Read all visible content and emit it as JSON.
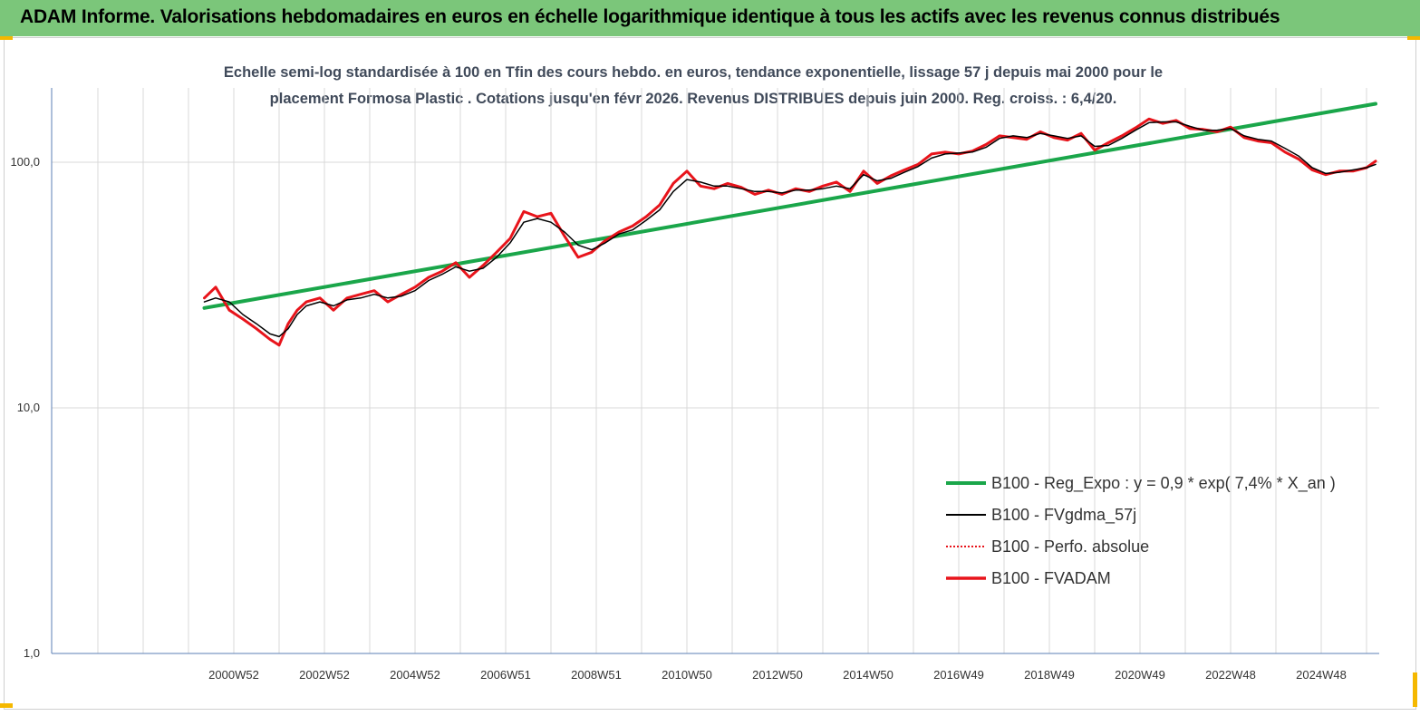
{
  "header": {
    "title": "ADAM Informe. Valorisations hebdomadaires en euros en échelle logarithmique identique à tous les actifs avec les revenus connus distribués"
  },
  "colors": {
    "header_bg": "#7bc67a",
    "accent_corner": "#f5b800",
    "series_regression": "#1aa64a",
    "series_smoothed": "#000000",
    "series_fvadam": "#e8141b"
  },
  "chart_data": {
    "type": "line",
    "title_line1": "Echelle semi-log standardisée à 100 en Tfin des cours hebdo. en euros, tendance exponentielle, lissage 57 j depuis mai 2000 pour le",
    "title_line2": "placement Formosa Plastic . Cotations jusqu'en févr 2026.  Revenus DISTRIBUES depuis juin 2000. Reg. croiss. : 6,4/20.",
    "y_scale": "log",
    "ylim": [
      1,
      200
    ],
    "y_ticks": [
      1,
      10,
      100
    ],
    "y_tick_labels": [
      "1,0",
      "10,0",
      "100,0"
    ],
    "xlim": [
      1998.0,
      2027.3
    ],
    "x_ticks": [
      2001.0,
      2003.0,
      2005.0,
      2007.0,
      2009.0,
      2011.0,
      2013.0,
      2015.0,
      2017.0,
      2019.0,
      2021.0,
      2023.0,
      2025.0
    ],
    "x_tick_labels": [
      "2000W52",
      "2002W52",
      "2004W52",
      "2006W51",
      "2008W51",
      "2010W50",
      "2012W50",
      "2014W50",
      "2016W49",
      "2018W49",
      "2020W49",
      "2022W48",
      "2024W48"
    ],
    "grid": "vertical",
    "legend_placement": "bottom-right",
    "series": [
      {
        "name": "B100 - Reg_Expo : y = 0,9 *  exp( 7,4% *  X_an )",
        "style": "thick-line",
        "x": [
          2000.35,
          2026.2
        ],
        "y": [
          25.5,
          173
        ]
      },
      {
        "name": "B100 - FVgdma_57j",
        "style": "line",
        "x": [
          2000.35,
          2000.6,
          2000.9,
          2001.2,
          2001.5,
          2001.8,
          2002.0,
          2002.2,
          2002.4,
          2002.6,
          2002.9,
          2003.2,
          2003.5,
          2003.8,
          2004.1,
          2004.4,
          2004.7,
          2005.0,
          2005.3,
          2005.6,
          2005.9,
          2006.2,
          2006.5,
          2006.8,
          2007.1,
          2007.4,
          2007.7,
          2008.0,
          2008.3,
          2008.6,
          2008.9,
          2009.2,
          2009.5,
          2009.8,
          2010.1,
          2010.4,
          2010.7,
          2011.0,
          2011.3,
          2011.6,
          2011.9,
          2012.2,
          2012.5,
          2012.8,
          2013.1,
          2013.4,
          2013.7,
          2014.0,
          2014.3,
          2014.6,
          2014.9,
          2015.2,
          2015.5,
          2015.8,
          2016.1,
          2016.4,
          2016.7,
          2017.0,
          2017.3,
          2017.6,
          2017.9,
          2018.2,
          2018.5,
          2018.8,
          2019.1,
          2019.4,
          2019.7,
          2020.0,
          2020.3,
          2020.6,
          2020.9,
          2021.2,
          2021.5,
          2021.8,
          2022.1,
          2022.4,
          2022.7,
          2023.0,
          2023.3,
          2023.6,
          2023.9,
          2024.2,
          2024.5,
          2024.8,
          2025.1,
          2025.4,
          2025.7,
          2026.0,
          2026.2
        ],
        "y": [
          27,
          28,
          27,
          24,
          22,
          20,
          19.5,
          21,
          24,
          26,
          27,
          26,
          27.5,
          28,
          29,
          28,
          28.5,
          30,
          33,
          35,
          37.5,
          36,
          37,
          41,
          47,
          57,
          59,
          57,
          52,
          46,
          44,
          47,
          51,
          53,
          58,
          64,
          76,
          85,
          83,
          80,
          80,
          78,
          76,
          76,
          75,
          77,
          77,
          78,
          80,
          78,
          89,
          84,
          86,
          91,
          96,
          104,
          108,
          109,
          110,
          115,
          125,
          128,
          126,
          131,
          128,
          125,
          128,
          116,
          117,
          125,
          135,
          145,
          146,
          146,
          140,
          135,
          135,
          137,
          128,
          124,
          122,
          114,
          106,
          95,
          90,
          91,
          93,
          95,
          98
        ]
      },
      {
        "name": "B100 - Perfo. absolue",
        "style": "dotted-line",
        "x": [],
        "y": []
      },
      {
        "name": "B100 - FVADAM",
        "style": "thick-line",
        "x": [
          2000.35,
          2000.6,
          2000.9,
          2001.2,
          2001.5,
          2001.8,
          2002.0,
          2002.2,
          2002.4,
          2002.6,
          2002.9,
          2003.2,
          2003.5,
          2003.8,
          2004.1,
          2004.4,
          2004.7,
          2005.0,
          2005.3,
          2005.6,
          2005.9,
          2006.2,
          2006.5,
          2006.8,
          2007.1,
          2007.4,
          2007.7,
          2008.0,
          2008.3,
          2008.6,
          2008.9,
          2009.2,
          2009.5,
          2009.8,
          2010.1,
          2010.4,
          2010.7,
          2011.0,
          2011.3,
          2011.6,
          2011.9,
          2012.2,
          2012.5,
          2012.8,
          2013.1,
          2013.4,
          2013.7,
          2014.0,
          2014.3,
          2014.6,
          2014.9,
          2015.2,
          2015.5,
          2015.8,
          2016.1,
          2016.4,
          2016.7,
          2017.0,
          2017.3,
          2017.6,
          2017.9,
          2018.2,
          2018.5,
          2018.8,
          2019.1,
          2019.4,
          2019.7,
          2020.0,
          2020.3,
          2020.6,
          2020.9,
          2021.2,
          2021.5,
          2021.8,
          2022.1,
          2022.4,
          2022.7,
          2023.0,
          2023.3,
          2023.6,
          2023.9,
          2024.2,
          2024.5,
          2024.8,
          2025.1,
          2025.4,
          2025.7,
          2026.0,
          2026.2
        ],
        "y": [
          28,
          31,
          25,
          23,
          21,
          19,
          18,
          22,
          25,
          27,
          28,
          25,
          28,
          29,
          30,
          27,
          29,
          31,
          34,
          36,
          39,
          34,
          38,
          43,
          49,
          63,
          60,
          62,
          50,
          41,
          43,
          48,
          52,
          55,
          60,
          67,
          82,
          92,
          80,
          78,
          82,
          79,
          74,
          77,
          74,
          78,
          76,
          80,
          83,
          76,
          92,
          82,
          88,
          93,
          98,
          108,
          110,
          108,
          111,
          118,
          128,
          126,
          124,
          133,
          126,
          123,
          131,
          112,
          120,
          128,
          138,
          150,
          144,
          148,
          137,
          136,
          133,
          139,
          126,
          122,
          120,
          110,
          103,
          93,
          89,
          92,
          92,
          95,
          101
        ]
      }
    ]
  }
}
